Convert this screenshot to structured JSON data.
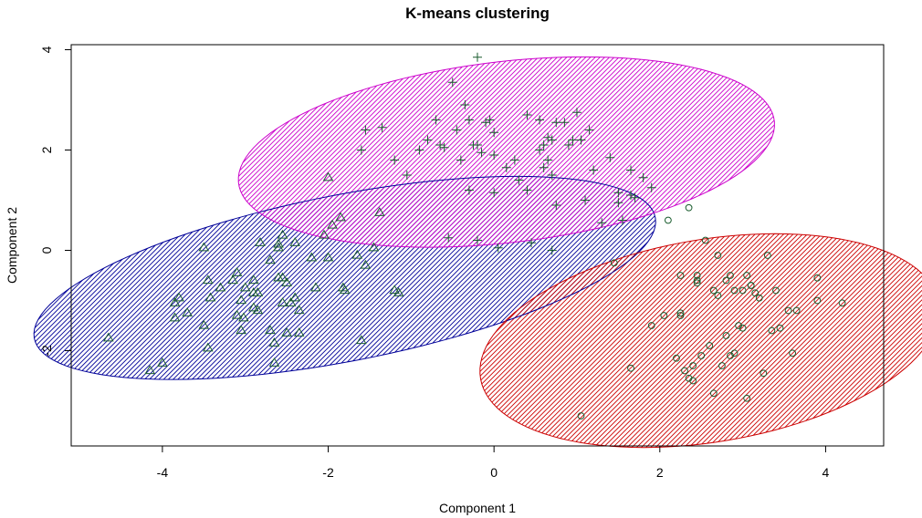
{
  "chart_data": {
    "type": "scatter",
    "title": "K-means clustering",
    "xlabel": "Component 1",
    "ylabel": "Component 2",
    "xlim": [
      -5.1,
      4.7
    ],
    "ylim": [
      -3.9,
      4.1
    ],
    "xticks": [
      -4,
      -2,
      0,
      2,
      4
    ],
    "yticks": [
      -2,
      0,
      2,
      4
    ],
    "grid": false,
    "legend": "none",
    "point_color": "#1a5c2e",
    "series": [
      {
        "marker": "triangle",
        "hatch_color": "#000099",
        "ellipse": {
          "cx": -1.8,
          "cy": -0.55,
          "rx": 3.95,
          "ry": 1.6,
          "angle_deg": 20.1
        },
        "points": [
          [
            -4.65,
            -1.75
          ],
          [
            -4.15,
            -2.4
          ],
          [
            -4.0,
            -2.25
          ],
          [
            -3.85,
            -1.35
          ],
          [
            -3.85,
            -1.05
          ],
          [
            -3.8,
            -0.95
          ],
          [
            -3.7,
            -1.25
          ],
          [
            -3.5,
            -1.5
          ],
          [
            -3.45,
            -1.95
          ],
          [
            -3.45,
            -0.6
          ],
          [
            -3.42,
            -0.95
          ],
          [
            -3.5,
            0.05
          ],
          [
            -3.3,
            -0.75
          ],
          [
            -3.15,
            -0.6
          ],
          [
            -3.1,
            -0.45
          ],
          [
            -3.05,
            -1.0
          ],
          [
            -3.1,
            -1.3
          ],
          [
            -3.02,
            -1.35
          ],
          [
            -3.0,
            -0.75
          ],
          [
            -2.9,
            -0.6
          ],
          [
            -3.05,
            -1.6
          ],
          [
            -2.9,
            -0.85
          ],
          [
            -2.85,
            -0.85
          ],
          [
            -2.9,
            -1.15
          ],
          [
            -2.85,
            -1.2
          ],
          [
            -2.82,
            0.15
          ],
          [
            -2.7,
            -1.6
          ],
          [
            -2.65,
            -1.85
          ],
          [
            -2.7,
            -0.2
          ],
          [
            -2.6,
            -0.55
          ],
          [
            -2.6,
            0.05
          ],
          [
            -2.6,
            0.12
          ],
          [
            -2.55,
            -0.55
          ],
          [
            -2.55,
            -1.05
          ],
          [
            -2.5,
            -1.65
          ],
          [
            -2.5,
            -0.65
          ],
          [
            -2.45,
            -1.05
          ],
          [
            -2.4,
            -0.95
          ],
          [
            -2.35,
            -1.65
          ],
          [
            -2.35,
            -1.2
          ],
          [
            -2.4,
            0.15
          ],
          [
            -2.2,
            -0.15
          ],
          [
            -2.15,
            -0.75
          ],
          [
            -2.05,
            0.3
          ],
          [
            -2.0,
            -0.15
          ],
          [
            -1.95,
            0.5
          ],
          [
            -1.85,
            0.65
          ],
          [
            -1.82,
            -0.75
          ],
          [
            -1.8,
            -0.8
          ],
          [
            -2.0,
            1.45
          ],
          [
            -1.65,
            -0.1
          ],
          [
            -1.55,
            -0.3
          ],
          [
            -1.45,
            0.05
          ],
          [
            -1.38,
            0.75
          ],
          [
            -1.6,
            -1.8
          ],
          [
            -1.2,
            -0.8
          ],
          [
            -1.15,
            -0.85
          ],
          [
            -2.55,
            0.3
          ],
          [
            -2.65,
            -2.25
          ]
        ]
      },
      {
        "marker": "plus",
        "hatch_color": "#cc00cc",
        "ellipse": {
          "cx": 0.15,
          "cy": 1.96,
          "rx": 3.3,
          "ry": 1.78,
          "angle_deg": 13.7
        },
        "points": [
          [
            -1.6,
            2.0
          ],
          [
            -1.55,
            2.4
          ],
          [
            -1.35,
            2.45
          ],
          [
            -1.2,
            1.8
          ],
          [
            -1.05,
            1.5
          ],
          [
            -0.9,
            2.0
          ],
          [
            -0.8,
            2.2
          ],
          [
            -0.7,
            2.6
          ],
          [
            -0.65,
            2.1
          ],
          [
            -0.6,
            2.05
          ],
          [
            -0.55,
            0.25
          ],
          [
            -0.5,
            3.35
          ],
          [
            -0.45,
            2.4
          ],
          [
            -0.4,
            1.8
          ],
          [
            -0.35,
            2.9
          ],
          [
            -0.3,
            2.6
          ],
          [
            -0.3,
            1.2
          ],
          [
            -0.25,
            2.1
          ],
          [
            -0.2,
            2.1
          ],
          [
            -0.2,
            3.85
          ],
          [
            -0.2,
            0.2
          ],
          [
            -0.15,
            1.95
          ],
          [
            -0.1,
            2.55
          ],
          [
            -0.05,
            2.6
          ],
          [
            0.0,
            1.9
          ],
          [
            0.0,
            2.35
          ],
          [
            0.0,
            1.15
          ],
          [
            0.05,
            0.05
          ],
          [
            0.15,
            1.65
          ],
          [
            0.25,
            1.8
          ],
          [
            0.3,
            1.4
          ],
          [
            0.4,
            1.2
          ],
          [
            0.45,
            0.15
          ],
          [
            0.4,
            2.7
          ],
          [
            0.55,
            2.0
          ],
          [
            0.55,
            2.6
          ],
          [
            0.6,
            1.65
          ],
          [
            0.6,
            2.1
          ],
          [
            0.65,
            2.25
          ],
          [
            0.7,
            2.2
          ],
          [
            0.65,
            1.8
          ],
          [
            0.75,
            2.55
          ],
          [
            0.7,
            1.5
          ],
          [
            0.75,
            0.9
          ],
          [
            0.85,
            2.55
          ],
          [
            0.9,
            2.1
          ],
          [
            0.95,
            2.2
          ],
          [
            1.0,
            2.75
          ],
          [
            1.05,
            2.2
          ],
          [
            1.1,
            1.0
          ],
          [
            1.15,
            2.4
          ],
          [
            1.2,
            1.6
          ],
          [
            1.3,
            0.55
          ],
          [
            1.4,
            1.85
          ],
          [
            1.5,
            1.15
          ],
          [
            1.55,
            0.6
          ],
          [
            1.65,
            1.1
          ],
          [
            1.65,
            1.6
          ],
          [
            1.7,
            1.05
          ],
          [
            1.8,
            1.45
          ],
          [
            1.9,
            1.25
          ],
          [
            0.7,
            0.0
          ],
          [
            1.5,
            0.95
          ]
        ]
      },
      {
        "marker": "circle",
        "hatch_color": "#cc0000",
        "ellipse": {
          "cx": 2.6,
          "cy": -1.8,
          "rx": 1.95,
          "ry": 2.9,
          "angle_deg": -66.4
        },
        "points": [
          [
            1.05,
            -3.3
          ],
          [
            1.45,
            -0.25
          ],
          [
            1.65,
            -2.35
          ],
          [
            1.9,
            -1.5
          ],
          [
            2.05,
            -1.3
          ],
          [
            2.2,
            -2.15
          ],
          [
            2.25,
            -1.25
          ],
          [
            2.25,
            -0.5
          ],
          [
            2.25,
            -1.3
          ],
          [
            2.3,
            -2.4
          ],
          [
            2.35,
            -2.55
          ],
          [
            2.4,
            -2.6
          ],
          [
            2.4,
            -2.3
          ],
          [
            2.45,
            -0.5
          ],
          [
            2.45,
            -0.6
          ],
          [
            2.45,
            -0.65
          ],
          [
            2.5,
            -2.1
          ],
          [
            2.55,
            0.2
          ],
          [
            2.65,
            -2.85
          ],
          [
            2.6,
            -1.9
          ],
          [
            2.65,
            -0.8
          ],
          [
            2.7,
            -0.9
          ],
          [
            2.7,
            -0.1
          ],
          [
            2.75,
            -2.3
          ],
          [
            2.8,
            -1.7
          ],
          [
            2.8,
            -0.6
          ],
          [
            2.85,
            -0.5
          ],
          [
            2.9,
            -2.05
          ],
          [
            2.9,
            -0.8
          ],
          [
            2.95,
            -1.5
          ],
          [
            3.0,
            -1.55
          ],
          [
            3.05,
            -0.5
          ],
          [
            3.0,
            -0.8
          ],
          [
            3.1,
            -0.7
          ],
          [
            3.1,
            -0.7
          ],
          [
            3.15,
            -0.85
          ],
          [
            3.2,
            -0.95
          ],
          [
            3.25,
            -2.45
          ],
          [
            3.35,
            -1.6
          ],
          [
            3.4,
            -0.8
          ],
          [
            3.45,
            -1.55
          ],
          [
            3.55,
            -1.2
          ],
          [
            3.6,
            -2.05
          ],
          [
            3.65,
            -1.2
          ],
          [
            3.9,
            -0.55
          ],
          [
            3.9,
            -1.0
          ],
          [
            4.2,
            -1.05
          ],
          [
            3.3,
            -0.1
          ],
          [
            3.05,
            -2.95
          ],
          [
            2.1,
            0.6
          ],
          [
            2.35,
            0.85
          ],
          [
            2.85,
            -2.1
          ]
        ]
      }
    ]
  }
}
